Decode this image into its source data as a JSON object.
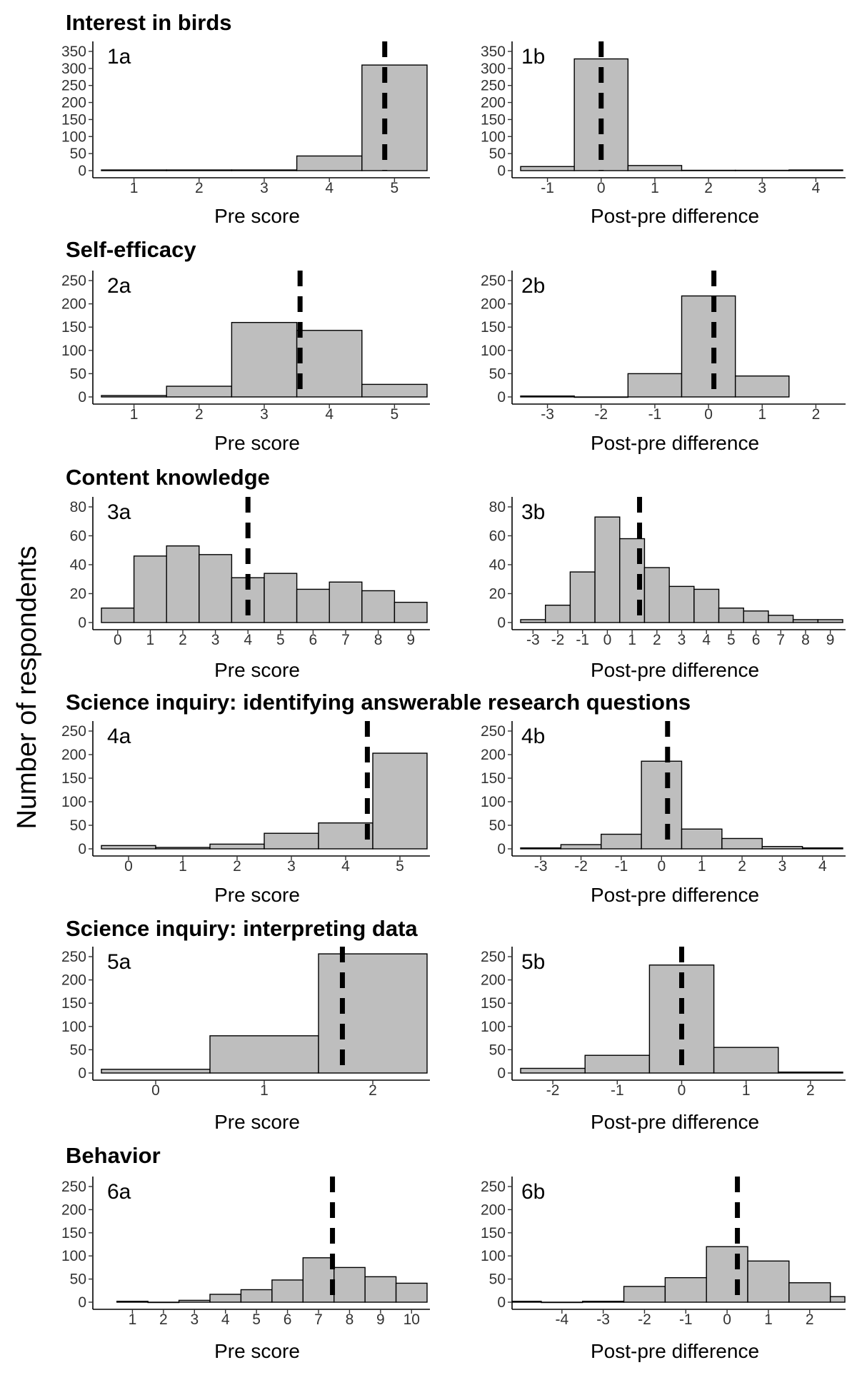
{
  "ylabel": "Number of respondents",
  "chart_data": [
    {
      "id": "1a",
      "type": "bar",
      "section": "Interest in birds",
      "panel_label": "1a",
      "xlabel": "Pre score",
      "bins": [
        {
          "x": 1,
          "count": 2
        },
        {
          "x": 2,
          "count": 2
        },
        {
          "x": 3,
          "count": 2
        },
        {
          "x": 4,
          "count": 43
        },
        {
          "x": 5,
          "count": 310
        }
      ],
      "bin_width": 1,
      "xlim": [
        0.5,
        5.5
      ],
      "xticks": [
        1,
        2,
        3,
        4,
        5
      ],
      "ylim": [
        0,
        350
      ],
      "yticks": [
        0,
        50,
        100,
        150,
        200,
        250,
        300,
        350
      ],
      "median_line": 4.85
    },
    {
      "id": "1b",
      "type": "bar",
      "section": "",
      "panel_label": "1b",
      "xlabel": "Post-pre difference",
      "bins": [
        {
          "x": -1,
          "count": 12
        },
        {
          "x": 0,
          "count": 328
        },
        {
          "x": 1,
          "count": 15
        },
        {
          "x": 2,
          "count": 1
        },
        {
          "x": 3,
          "count": 1
        },
        {
          "x": 4,
          "count": 2
        }
      ],
      "bin_width": 1,
      "xlim": [
        -1.5,
        4.5
      ],
      "xticks": [
        -1,
        0,
        1,
        2,
        3,
        4
      ],
      "ylim": [
        0,
        350
      ],
      "yticks": [
        0,
        50,
        100,
        150,
        200,
        250,
        300,
        350
      ],
      "median_line": 0
    },
    {
      "id": "2a",
      "type": "bar",
      "section": "Self-efficacy",
      "panel_label": "2a",
      "xlabel": "Pre score",
      "bins": [
        {
          "x": 1,
          "count": 3
        },
        {
          "x": 2,
          "count": 23
        },
        {
          "x": 3,
          "count": 160
        },
        {
          "x": 4,
          "count": 143
        },
        {
          "x": 5,
          "count": 27
        }
      ],
      "bin_width": 1,
      "xlim": [
        0.5,
        5.5
      ],
      "xticks": [
        1,
        2,
        3,
        4,
        5
      ],
      "ylim": [
        0,
        250
      ],
      "yticks": [
        0,
        50,
        100,
        150,
        200,
        250
      ],
      "median_line": 3.55
    },
    {
      "id": "2b",
      "type": "bar",
      "section": "",
      "panel_label": "2b",
      "xlabel": "Post-pre difference",
      "bins": [
        {
          "x": -3,
          "count": 2
        },
        {
          "x": -2,
          "count": 0
        },
        {
          "x": -1,
          "count": 50
        },
        {
          "x": 0,
          "count": 217
        },
        {
          "x": 1,
          "count": 45
        }
      ],
      "bin_width": 1,
      "xlim": [
        -3.5,
        2.5
      ],
      "xticks": [
        -3,
        -2,
        -1,
        0,
        1,
        2
      ],
      "ylim": [
        0,
        250
      ],
      "yticks": [
        0,
        50,
        100,
        150,
        200,
        250
      ],
      "median_line": 0.1
    },
    {
      "id": "3a",
      "type": "bar",
      "section": "Content knowledge",
      "panel_label": "3a",
      "xlabel": "Pre score",
      "bins": [
        {
          "x": 0,
          "count": 10
        },
        {
          "x": 1,
          "count": 46
        },
        {
          "x": 2,
          "count": 53
        },
        {
          "x": 3,
          "count": 47
        },
        {
          "x": 4,
          "count": 31
        },
        {
          "x": 5,
          "count": 34
        },
        {
          "x": 6,
          "count": 23
        },
        {
          "x": 7,
          "count": 28
        },
        {
          "x": 8,
          "count": 22
        },
        {
          "x": 9,
          "count": 14
        }
      ],
      "bin_width": 1,
      "xlim": [
        -0.5,
        9.5
      ],
      "xticks": [
        0,
        1,
        2,
        3,
        4,
        5,
        6,
        7,
        8,
        9
      ],
      "ylim": [
        0,
        80
      ],
      "yticks": [
        0,
        20,
        40,
        60,
        80
      ],
      "median_line": 4
    },
    {
      "id": "3b",
      "type": "bar",
      "section": "",
      "panel_label": "3b",
      "xlabel": "Post-pre difference",
      "bins": [
        {
          "x": -3,
          "count": 2
        },
        {
          "x": -2,
          "count": 12
        },
        {
          "x": -1,
          "count": 35
        },
        {
          "x": 0,
          "count": 73
        },
        {
          "x": 1,
          "count": 58
        },
        {
          "x": 2,
          "count": 38
        },
        {
          "x": 3,
          "count": 25
        },
        {
          "x": 4,
          "count": 23
        },
        {
          "x": 5,
          "count": 10
        },
        {
          "x": 6,
          "count": 8
        },
        {
          "x": 7,
          "count": 5
        },
        {
          "x": 8,
          "count": 2
        },
        {
          "x": 9,
          "count": 2
        }
      ],
      "bin_width": 1,
      "xlim": [
        -3.5,
        9.5
      ],
      "xticks": [
        -3,
        -2,
        -1,
        0,
        1,
        2,
        3,
        4,
        5,
        6,
        7,
        8,
        9
      ],
      "ylim": [
        0,
        80
      ],
      "yticks": [
        0,
        20,
        40,
        60,
        80
      ],
      "median_line": 1.3
    },
    {
      "id": "4a",
      "type": "bar",
      "section": "Science inquiry: identifying answerable research questions",
      "panel_label": "4a",
      "xlabel": "Pre score",
      "bins": [
        {
          "x": 0,
          "count": 7
        },
        {
          "x": 1,
          "count": 3
        },
        {
          "x": 2,
          "count": 10
        },
        {
          "x": 3,
          "count": 33
        },
        {
          "x": 4,
          "count": 55
        },
        {
          "x": 5,
          "count": 203
        }
      ],
      "bin_width": 1,
      "xlim": [
        -0.5,
        5.5
      ],
      "xticks": [
        0,
        1,
        2,
        3,
        4,
        5
      ],
      "ylim": [
        0,
        250
      ],
      "yticks": [
        0,
        50,
        100,
        150,
        200,
        250
      ],
      "median_line": 4.4
    },
    {
      "id": "4b",
      "type": "bar",
      "section": "",
      "panel_label": "4b",
      "xlabel": "Post-pre difference",
      "bins": [
        {
          "x": -3,
          "count": 2
        },
        {
          "x": -2,
          "count": 9
        },
        {
          "x": -1,
          "count": 31
        },
        {
          "x": 0,
          "count": 186
        },
        {
          "x": 1,
          "count": 42
        },
        {
          "x": 2,
          "count": 22
        },
        {
          "x": 3,
          "count": 5
        },
        {
          "x": 4,
          "count": 2
        }
      ],
      "bin_width": 1,
      "xlim": [
        -3.5,
        4.5
      ],
      "xticks": [
        -3,
        -2,
        -1,
        0,
        1,
        2,
        3,
        4
      ],
      "ylim": [
        0,
        250
      ],
      "yticks": [
        0,
        50,
        100,
        150,
        200,
        250
      ],
      "median_line": 0.15
    },
    {
      "id": "5a",
      "type": "bar",
      "section": "Science inquiry: interpreting data",
      "panel_label": "5a",
      "xlabel": "Pre score",
      "bins": [
        {
          "x": 0,
          "count": 8
        },
        {
          "x": 1,
          "count": 80
        },
        {
          "x": 2,
          "count": 256
        }
      ],
      "bin_width": 1,
      "xlim": [
        -0.5,
        2.5
      ],
      "xticks": [
        0,
        1,
        2
      ],
      "ylim": [
        0,
        250
      ],
      "yticks": [
        0,
        50,
        100,
        150,
        200,
        250
      ],
      "median_line": 1.72
    },
    {
      "id": "5b",
      "type": "bar",
      "section": "",
      "panel_label": "5b",
      "xlabel": "Post-pre difference",
      "bins": [
        {
          "x": -2,
          "count": 10
        },
        {
          "x": -1,
          "count": 38
        },
        {
          "x": 0,
          "count": 232
        },
        {
          "x": 1,
          "count": 55
        },
        {
          "x": 2,
          "count": 2
        }
      ],
      "bin_width": 1,
      "xlim": [
        -2.5,
        2.5
      ],
      "xticks": [
        -2,
        -1,
        0,
        1,
        2
      ],
      "ylim": [
        0,
        250
      ],
      "yticks": [
        0,
        50,
        100,
        150,
        200,
        250
      ],
      "median_line": 0
    },
    {
      "id": "6a",
      "type": "bar",
      "section": "Behavior",
      "panel_label": "6a",
      "xlabel": "Pre score",
      "bins": [
        {
          "x": 1,
          "count": 2
        },
        {
          "x": 2,
          "count": 0
        },
        {
          "x": 3,
          "count": 4
        },
        {
          "x": 4,
          "count": 17
        },
        {
          "x": 5,
          "count": 27
        },
        {
          "x": 6,
          "count": 48
        },
        {
          "x": 7,
          "count": 96
        },
        {
          "x": 8,
          "count": 75
        },
        {
          "x": 9,
          "count": 55
        },
        {
          "x": 10,
          "count": 41
        }
      ],
      "bin_width": 1,
      "xlim": [
        0,
        10.5
      ],
      "xticks": [
        1,
        2,
        3,
        4,
        5,
        6,
        7,
        8,
        9,
        10
      ],
      "ylim": [
        0,
        250
      ],
      "yticks": [
        0,
        50,
        100,
        150,
        200,
        250
      ],
      "median_line": 7.45
    },
    {
      "id": "6b",
      "type": "bar",
      "section": "",
      "panel_label": "6b",
      "xlabel": "Post-pre difference",
      "bins": [
        {
          "x": -5,
          "count": 2
        },
        {
          "x": -4,
          "count": 0
        },
        {
          "x": -3,
          "count": 2
        },
        {
          "x": -2,
          "count": 34
        },
        {
          "x": -1,
          "count": 53
        },
        {
          "x": 0,
          "count": 120
        },
        {
          "x": 1,
          "count": 89
        },
        {
          "x": 2,
          "count": 42
        },
        {
          "x": 3,
          "count": 12
        }
      ],
      "bin_width": 1,
      "xlim": [
        -5,
        2.8
      ],
      "xticks": [
        -4,
        -3,
        -2,
        -1,
        0,
        1,
        2
      ],
      "ylim": [
        0,
        250
      ],
      "yticks": [
        0,
        50,
        100,
        150,
        200,
        250
      ],
      "median_line": 0.25
    }
  ]
}
